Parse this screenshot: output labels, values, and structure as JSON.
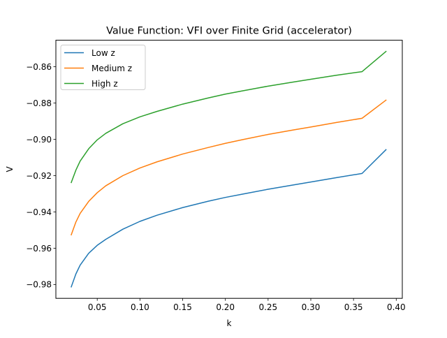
{
  "chart_data": {
    "type": "line",
    "title": "Value Function: VFI over Finite Grid (accelerator)",
    "xlabel": "k",
    "ylabel": "V",
    "xlim": [
      0.0016,
      0.4071
    ],
    "ylim": [
      -0.9876,
      -0.8454
    ],
    "xticks": [
      0.05,
      0.1,
      0.15,
      0.2,
      0.25,
      0.3,
      0.35,
      0.4
    ],
    "xtick_labels": [
      "0.05",
      "0.10",
      "0.15",
      "0.20",
      "0.25",
      "0.30",
      "0.35",
      "0.40"
    ],
    "yticks": [
      -0.98,
      -0.96,
      -0.94,
      -0.92,
      -0.9,
      -0.88,
      -0.86
    ],
    "ytick_labels": [
      "−0.98",
      "−0.96",
      "−0.94",
      "−0.92",
      "−0.90",
      "−0.88",
      "−0.86"
    ],
    "grid": false,
    "legend_position": "top-left",
    "series": [
      {
        "name": "Low z",
        "color": "#1f77b4",
        "x": [
          0.0196,
          0.025,
          0.03,
          0.04,
          0.05,
          0.06,
          0.08,
          0.1,
          0.12,
          0.15,
          0.18,
          0.2,
          0.22,
          0.25,
          0.28,
          0.3,
          0.33,
          0.36,
          0.388
        ],
        "y": [
          -0.9813,
          -0.9742,
          -0.9693,
          -0.9628,
          -0.9584,
          -0.9551,
          -0.9495,
          -0.9452,
          -0.9418,
          -0.9376,
          -0.9341,
          -0.932,
          -0.9302,
          -0.9275,
          -0.9251,
          -0.9235,
          -0.9211,
          -0.9188,
          -0.9057
        ]
      },
      {
        "name": "Medium z",
        "color": "#ff7f0e",
        "x": [
          0.0196,
          0.025,
          0.03,
          0.04,
          0.05,
          0.06,
          0.08,
          0.1,
          0.12,
          0.15,
          0.18,
          0.2,
          0.22,
          0.25,
          0.28,
          0.3,
          0.33,
          0.36,
          0.388
        ],
        "y": [
          -0.9526,
          -0.9456,
          -0.9408,
          -0.9342,
          -0.9294,
          -0.9256,
          -0.92,
          -0.9158,
          -0.9124,
          -0.9081,
          -0.9045,
          -0.9022,
          -0.9002,
          -0.8973,
          -0.8948,
          -0.8932,
          -0.8907,
          -0.8884,
          -0.8784
        ]
      },
      {
        "name": "High z",
        "color": "#2ca02c",
        "x": [
          0.0196,
          0.025,
          0.03,
          0.04,
          0.05,
          0.06,
          0.08,
          0.1,
          0.12,
          0.15,
          0.18,
          0.2,
          0.22,
          0.25,
          0.28,
          0.3,
          0.33,
          0.36,
          0.388
        ],
        "y": [
          -0.9238,
          -0.917,
          -0.912,
          -0.9052,
          -0.9003,
          -0.8967,
          -0.8914,
          -0.8876,
          -0.8846,
          -0.8806,
          -0.8772,
          -0.8751,
          -0.8733,
          -0.8707,
          -0.8684,
          -0.8669,
          -0.8647,
          -0.8627,
          -0.8516
        ]
      }
    ]
  }
}
